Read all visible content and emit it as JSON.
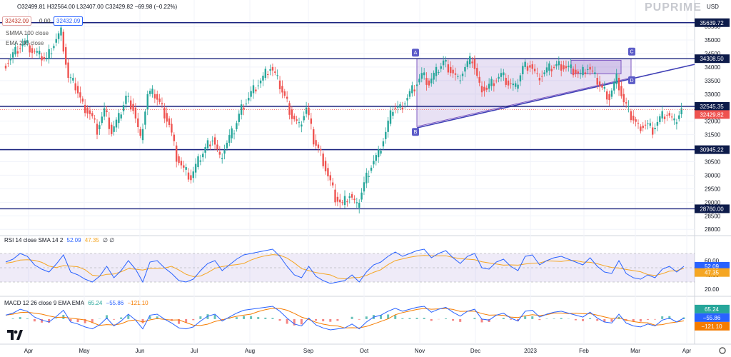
{
  "header": {
    "ohlc": "O32499.81  H32564.00  L32407.00  C32429.82  −69.98 (−0.22%)",
    "currency": "USD",
    "brand": "PUPRIME",
    "price_pill_1": "32432.09",
    "price_pill_2": "32432.09",
    "pill_mid": "0.00",
    "ma1": "SMMA 100 close",
    "ma2": "EMA 200 close"
  },
  "rsi_legend": {
    "label": "RSI 14 close SMA 14 2",
    "v1": "52.09",
    "v2": "47.35",
    "v3": "∅ ∅"
  },
  "macd_legend": {
    "label": "MACD 12 26 close 9 EMA EMA",
    "v1": "65.24",
    "v2": "−55.86",
    "v3": "−121.10"
  },
  "chart_data": {
    "type": "line",
    "x_labels": [
      "Apr",
      "May",
      "Jun",
      "Jul",
      "Aug",
      "Sep",
      "Oct",
      "Nov",
      "Dec",
      "2023",
      "Feb",
      "Mar",
      "Apr"
    ],
    "price": [
      34050,
      34350,
      34700,
      34900,
      34600,
      34400,
      34300,
      34900,
      35300,
      33600,
      33300,
      32600,
      32300,
      31700,
      32400,
      31600,
      32100,
      32900,
      32500,
      31300,
      33000,
      33000,
      32500,
      31900,
      30700,
      30200,
      29900,
      30500,
      31000,
      31400,
      30600,
      31200,
      31700,
      32500,
      32900,
      33300,
      33600,
      34000,
      33500,
      32900,
      32200,
      31800,
      32500,
      31300,
      30800,
      30000,
      29200,
      28900,
      29300,
      28800,
      29700,
      30400,
      30800,
      31600,
      32500,
      32500,
      32900,
      33300,
      33700,
      33400,
      33800,
      34200,
      33900,
      33500,
      34000,
      34300,
      33300,
      33200,
      33500,
      33700,
      33400,
      33200,
      34000,
      34100,
      33600,
      33800,
      34000,
      34100,
      34000,
      33900,
      33700,
      34000,
      33600,
      33200,
      32900,
      33600,
      32700,
      32200,
      31800,
      31900,
      31700,
      32100,
      32300,
      31900,
      32430
    ],
    "y_ticks": [
      35500,
      35000,
      34500,
      34000,
      33500,
      33000,
      32500,
      32000,
      31500,
      31000,
      30500,
      30000,
      29500,
      29000,
      28500,
      28000
    ],
    "ylim": [
      27900,
      35950
    ],
    "horizontal_levels": [
      {
        "value": 35639.72,
        "label": "35639.72"
      },
      {
        "value": 34308.5,
        "label": "34308.50"
      },
      {
        "value": 32545.35,
        "label": "32545.35"
      },
      {
        "value": 30945.22,
        "label": "30945.22"
      },
      {
        "value": 28760.0,
        "label": "28760.00"
      }
    ],
    "last_price": {
      "value": 32429.82,
      "label": "32429.82"
    },
    "pattern_points": [
      "A",
      "B",
      "C",
      "D"
    ],
    "rsi": [
      58,
      62,
      70,
      66,
      54,
      48,
      44,
      55,
      68,
      44,
      40,
      34,
      30,
      38,
      52,
      36,
      46,
      60,
      48,
      30,
      58,
      60,
      50,
      42,
      32,
      30,
      34,
      46,
      56,
      60,
      46,
      54,
      62,
      68,
      70,
      72,
      74,
      76,
      66,
      52,
      40,
      36,
      52,
      38,
      32,
      28,
      30,
      32,
      40,
      30,
      44,
      54,
      58,
      66,
      72,
      66,
      70,
      74,
      76,
      64,
      70,
      74,
      64,
      56,
      66,
      70,
      50,
      48,
      58,
      62,
      52,
      46,
      66,
      68,
      54,
      60,
      64,
      66,
      62,
      58,
      54,
      64,
      52,
      44,
      42,
      60,
      42,
      36,
      34,
      40,
      36,
      48,
      52,
      44,
      52
    ],
    "rsi_ticks": [
      60,
      40,
      20
    ],
    "rsi_ylim": [
      15,
      85
    ],
    "macd_ticks": [
      500,
      0
    ],
    "macd_ylim": [
      -900,
      700
    ]
  }
}
